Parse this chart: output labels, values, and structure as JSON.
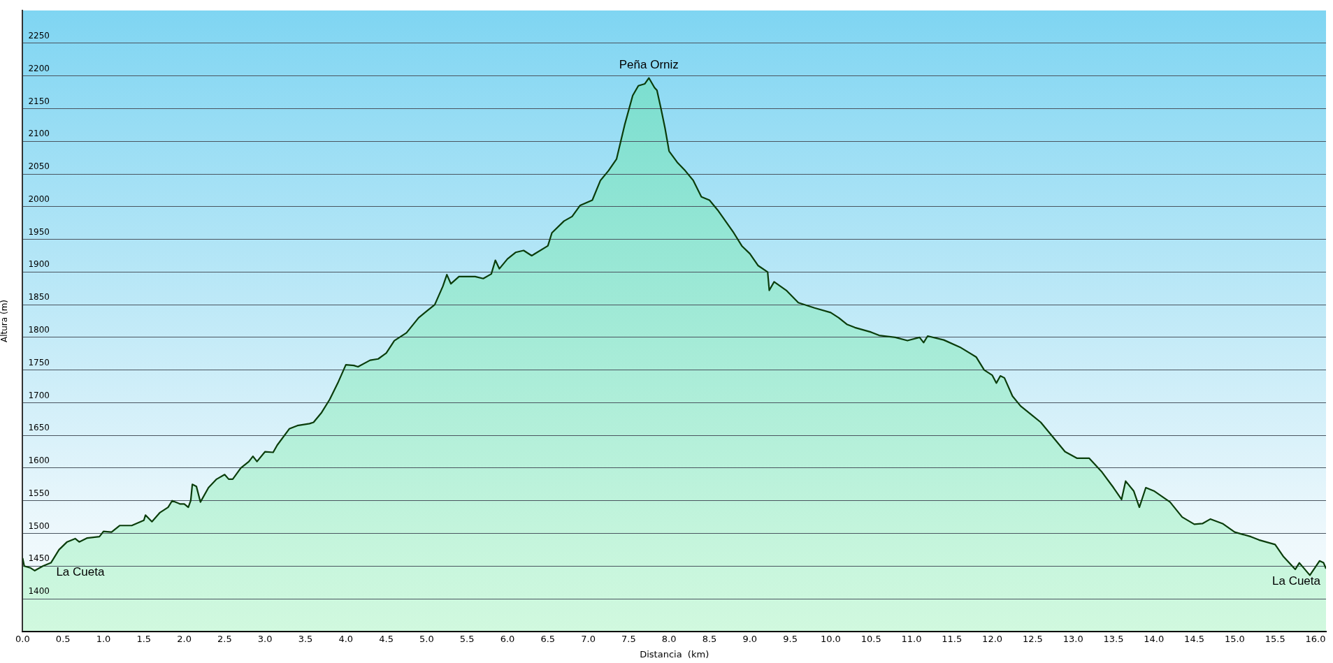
{
  "chart_data": {
    "type": "area",
    "xlabel": "Distancia  (km)",
    "ylabel": "Altura (m)",
    "annotations": [
      {
        "text": "La Cueta",
        "x": 0,
        "y": 1462
      },
      {
        "text": "Peña Orniz",
        "x": 7.75,
        "y": 2197
      },
      {
        "text": "La Cueta",
        "x": 16.13,
        "y": 1446
      }
    ],
    "series": [
      {
        "color": "#0b3d0b",
        "x": [
          0,
          0.02,
          0.1,
          0.15,
          0.25,
          0.35,
          0.45,
          0.55,
          0.65,
          0.7,
          0.8,
          0.95,
          1.0,
          1.1,
          1.2,
          1.35,
          1.5,
          1.52,
          1.6,
          1.7,
          1.8,
          1.85,
          1.95,
          2.0,
          2.05,
          2.08,
          2.1,
          2.15,
          2.2,
          2.3,
          2.4,
          2.5,
          2.55,
          2.6,
          2.7,
          2.8,
          2.85,
          2.9,
          3.0,
          3.1,
          3.15,
          3.3,
          3.4,
          3.55,
          3.6,
          3.7,
          3.8,
          3.9,
          4.0,
          4.1,
          4.15,
          4.3,
          4.4,
          4.5,
          4.6,
          4.75,
          4.9,
          5.0,
          5.1,
          5.2,
          5.25,
          5.3,
          5.4,
          5.6,
          5.7,
          5.8,
          5.85,
          5.9,
          6.0,
          6.1,
          6.2,
          6.3,
          6.5,
          6.55,
          6.7,
          6.8,
          6.9,
          7.05,
          7.15,
          7.25,
          7.35,
          7.45,
          7.55,
          7.62,
          7.7,
          7.75,
          7.82,
          7.85,
          7.9,
          7.95,
          8.0,
          8.1,
          8.2,
          8.3,
          8.4,
          8.5,
          8.6,
          8.8,
          8.9,
          9.0,
          9.1,
          9.22,
          9.24,
          9.3,
          9.45,
          9.6,
          9.8,
          10.0,
          10.1,
          10.2,
          10.3,
          10.5,
          10.6,
          10.8,
          10.95,
          11.1,
          11.15,
          11.2,
          11.4,
          11.6,
          11.8,
          11.9,
          12.0,
          12.05,
          12.1,
          12.15,
          12.25,
          12.35,
          12.5,
          12.6,
          12.7,
          12.8,
          12.9,
          13.05,
          13.2,
          13.35,
          13.5,
          13.6,
          13.65,
          13.75,
          13.82,
          13.9,
          14.0,
          14.2,
          14.35,
          14.5,
          14.6,
          14.7,
          14.85,
          15.0,
          15.2,
          15.3,
          15.5,
          15.6,
          15.75,
          15.8,
          15.93,
          16.05,
          16.1,
          16.13
        ],
        "values": [
          1462,
          1450,
          1447,
          1443,
          1450,
          1455,
          1475,
          1487,
          1492,
          1487,
          1493,
          1495,
          1503,
          1502,
          1512,
          1512,
          1520,
          1528,
          1518,
          1532,
          1540,
          1550,
          1545,
          1545,
          1540,
          1550,
          1575,
          1572,
          1548,
          1570,
          1583,
          1590,
          1583,
          1583,
          1600,
          1610,
          1618,
          1610,
          1625,
          1624,
          1635,
          1660,
          1665,
          1668,
          1670,
          1685,
          1705,
          1730,
          1758,
          1757,
          1755,
          1765,
          1767,
          1776,
          1795,
          1807,
          1830,
          1840,
          1850,
          1878,
          1896,
          1882,
          1893,
          1893,
          1890,
          1897,
          1918,
          1905,
          1920,
          1930,
          1933,
          1925,
          1940,
          1960,
          1978,
          1985,
          2002,
          2010,
          2040,
          2055,
          2073,
          2125,
          2170,
          2185,
          2188,
          2197,
          2182,
          2178,
          2150,
          2120,
          2085,
          2068,
          2055,
          2040,
          2015,
          2010,
          1995,
          1960,
          1940,
          1928,
          1910,
          1900,
          1872,
          1885,
          1872,
          1853,
          1845,
          1838,
          1830,
          1820,
          1815,
          1808,
          1803,
          1800,
          1795,
          1800,
          1792,
          1802,
          1796,
          1785,
          1770,
          1750,
          1742,
          1730,
          1741,
          1738,
          1710,
          1695,
          1680,
          1670,
          1655,
          1640,
          1625,
          1615,
          1615,
          1595,
          1570,
          1552,
          1580,
          1565,
          1540,
          1570,
          1565,
          1548,
          1525,
          1514,
          1515,
          1522,
          1515,
          1502,
          1495,
          1490,
          1483,
          1465,
          1445,
          1455,
          1436,
          1458,
          1455,
          1446
        ]
      }
    ],
    "xlim": [
      0,
      16.13
    ],
    "ylim": [
      1350,
      2300
    ],
    "xticks": [
      {
        "value": 0,
        "label": "0.0"
      },
      {
        "value": 0.5,
        "label": "0.5"
      },
      {
        "value": 1,
        "label": "1.0"
      },
      {
        "value": 1.5,
        "label": "1.5"
      },
      {
        "value": 2,
        "label": "2.0"
      },
      {
        "value": 2.5,
        "label": "2.5"
      },
      {
        "value": 3,
        "label": "3.0"
      },
      {
        "value": 3.5,
        "label": "3.5"
      },
      {
        "value": 4,
        "label": "4.0"
      },
      {
        "value": 4.5,
        "label": "4.5"
      },
      {
        "value": 5,
        "label": "5.0"
      },
      {
        "value": 5.5,
        "label": "5.5"
      },
      {
        "value": 6,
        "label": "6.0"
      },
      {
        "value": 6.5,
        "label": "6.5"
      },
      {
        "value": 7,
        "label": "7.0"
      },
      {
        "value": 7.5,
        "label": "7.5"
      },
      {
        "value": 8,
        "label": "8.0"
      },
      {
        "value": 8.5,
        "label": "8.5"
      },
      {
        "value": 9,
        "label": "9.0"
      },
      {
        "value": 9.5,
        "label": "9.5"
      },
      {
        "value": 10,
        "label": "10.0"
      },
      {
        "value": 10.5,
        "label": "10.5"
      },
      {
        "value": 11,
        "label": "11.0"
      },
      {
        "value": 11.5,
        "label": "11.5"
      },
      {
        "value": 12,
        "label": "12.0"
      },
      {
        "value": 12.5,
        "label": "12.5"
      },
      {
        "value": 13,
        "label": "13.0"
      },
      {
        "value": 13.5,
        "label": "13.5"
      },
      {
        "value": 14,
        "label": "14.0"
      },
      {
        "value": 14.5,
        "label": "14.5"
      },
      {
        "value": 15,
        "label": "15.0"
      },
      {
        "value": 15.5,
        "label": "15.5"
      },
      {
        "value": 16,
        "label": "16.0"
      }
    ],
    "yticks": [
      1400,
      1450,
      1500,
      1550,
      1600,
      1650,
      1700,
      1750,
      1800,
      1850,
      1900,
      1950,
      2000,
      2050,
      2100,
      2150,
      2200,
      2250
    ],
    "grid": "y",
    "legend": false,
    "marker": "none",
    "line_style": "solid"
  }
}
